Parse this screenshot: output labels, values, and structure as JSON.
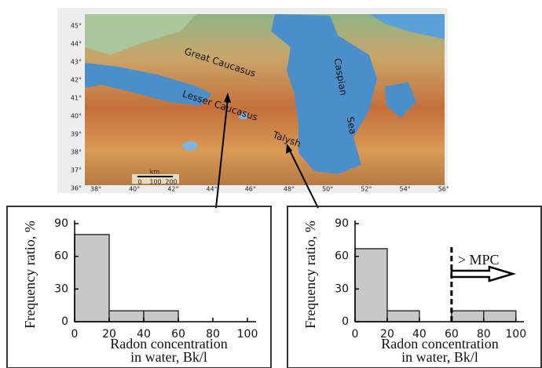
{
  "map": {
    "lat_labels": [
      "45°",
      "44°",
      "43°",
      "42°",
      "41°",
      "40°",
      "39°",
      "38°",
      "37°",
      "36°"
    ],
    "lon_labels": [
      "38°",
      "40°",
      "42°",
      "44°",
      "46°",
      "48°",
      "50°",
      "52°",
      "54°",
      "56°"
    ],
    "labels": {
      "great_caucasus": "Great  Caucasus",
      "lesser_caucasus": "Lesser Caucasus",
      "caspian": "Caspian",
      "sea": "Sea",
      "talysh": "Talysh"
    },
    "scale": {
      "unit": "km",
      "ticks": [
        "0",
        "100",
        "200"
      ]
    }
  },
  "chart_data": [
    {
      "type": "histogram",
      "ylabel": "Frequency ratio, %",
      "xlabel": [
        "Radon concentration",
        "in water, Bk/l"
      ],
      "bins": [
        0,
        20,
        40,
        60
      ],
      "counts": [
        80,
        10,
        10
      ],
      "color": "#c8c8c8",
      "xlim": [
        0,
        105
      ],
      "ylim": [
        0,
        90
      ],
      "xticks": [
        0,
        20,
        40,
        60,
        80,
        100
      ],
      "yticks": [
        0,
        30,
        60,
        90
      ]
    },
    {
      "type": "histogram",
      "ylabel": "Frequency ratio, %",
      "xlabel": [
        "Radon concentration",
        "in water, Bk/l"
      ],
      "bins": [
        0,
        20,
        40,
        60,
        80,
        100
      ],
      "counts": [
        67,
        10,
        0,
        10,
        10
      ],
      "color": "#c8c8c8",
      "xlim": [
        0,
        105
      ],
      "ylim": [
        0,
        90
      ],
      "xticks": [
        0,
        20,
        40,
        60,
        80,
        100
      ],
      "yticks": [
        0,
        30,
        60,
        90
      ],
      "threshold": 60,
      "annotation": "> MPC"
    }
  ]
}
